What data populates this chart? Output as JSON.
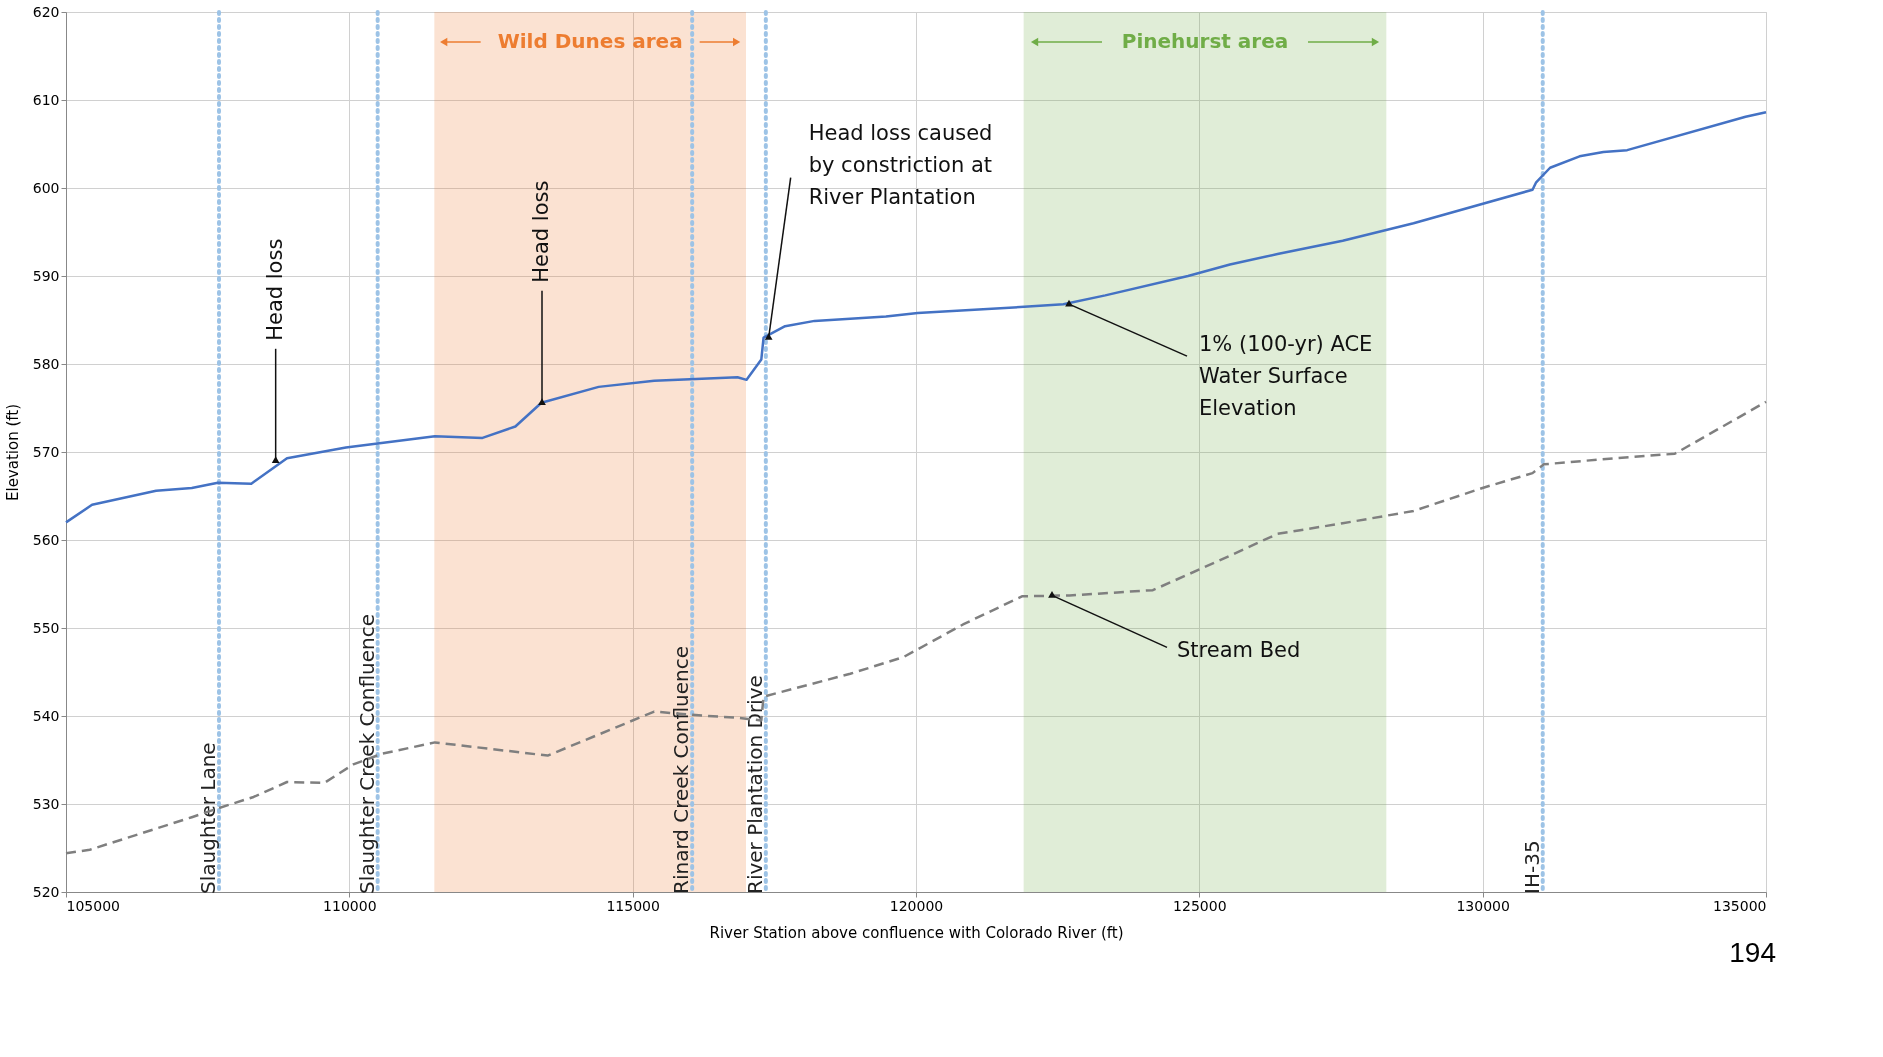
{
  "chart_data": {
    "type": "line",
    "xlabel": "River Station above confluence with Colorado River (ft)",
    "ylabel": "Elevation (ft)",
    "xlim": [
      105000,
      135000
    ],
    "xticks": [
      105000,
      110000,
      115000,
      120000,
      125000,
      130000,
      135000
    ],
    "ylim": [
      520,
      620
    ],
    "yticks": [
      520,
      530,
      540,
      550,
      560,
      570,
      580,
      590,
      600,
      610,
      620
    ],
    "grid": true,
    "series": [
      {
        "color": "#4472c4",
        "line_style": "solid",
        "x": [
          105000,
          105460,
          106590,
          107220,
          107680,
          108270,
          108900,
          109940,
          111510,
          112350,
          112930,
          113390,
          114400,
          115380,
          116850,
          117010,
          117270,
          117310,
          117690,
          118210,
          119470,
          120030,
          121910,
          122600,
          123340,
          124800,
          125540,
          126380,
          127530,
          128780,
          130880,
          130940,
          131190,
          131710,
          132130,
          132550,
          134640,
          135000
        ],
        "values": [
          562.0,
          564.0,
          565.6,
          565.9,
          566.5,
          566.4,
          569.3,
          570.5,
          571.8,
          571.6,
          572.9,
          575.6,
          577.4,
          578.1,
          578.5,
          578.2,
          580.5,
          583.0,
          584.3,
          584.9,
          585.4,
          585.8,
          586.5,
          586.8,
          587.8,
          590.0,
          591.3,
          592.5,
          594.0,
          596.0,
          599.8,
          600.6,
          602.3,
          603.6,
          604.1,
          604.3,
          608.1,
          608.6
        ]
      },
      {
        "color": "#7f7f7f",
        "line_style": "dashed",
        "x": [
          105000,
          105420,
          107220,
          107680,
          108310,
          108900,
          109560,
          110070,
          110570,
          111510,
          113500,
          115380,
          116110,
          116850,
          117270,
          117310,
          118840,
          119780,
          120830,
          121870,
          122710,
          124180,
          125330,
          126380,
          127530,
          128780,
          130040,
          130880,
          131080,
          132340,
          133390,
          135000
        ],
        "values": [
          524.4,
          524.8,
          528.5,
          529.5,
          530.8,
          532.5,
          532.4,
          534.5,
          535.7,
          537.0,
          535.5,
          540.5,
          540.1,
          539.8,
          539.5,
          542.2,
          544.8,
          546.7,
          550.4,
          553.6,
          553.7,
          554.3,
          557.6,
          560.7,
          561.9,
          563.3,
          566.0,
          567.6,
          568.6,
          569.3,
          569.8,
          575.7
        ]
      }
    ],
    "bands": [
      {
        "axis": "x",
        "from": 111500,
        "to": 117000,
        "label": "Wild Dunes area",
        "color": "#ed7d31"
      },
      {
        "axis": "x",
        "from": 121900,
        "to": 128300,
        "label": "Pinehurst area",
        "color": "#70ad47"
      }
    ],
    "ref_lines": [
      {
        "axis": "x",
        "value": 107700,
        "label": "Slaughter Lane",
        "color": "#9dc3e6",
        "line_style": "dotted"
      },
      {
        "axis": "x",
        "value": 110500,
        "label": "Slaughter Creek Confluence",
        "color": "#9dc3e6",
        "line_style": "dotted"
      },
      {
        "axis": "x",
        "value": 116050,
        "label": "Rinard Creek Confluence",
        "color": "#9dc3e6",
        "line_style": "dotted"
      },
      {
        "axis": "x",
        "value": 117350,
        "label": "River Plantation Drive",
        "color": "#9dc3e6",
        "line_style": "dotted"
      },
      {
        "axis": "x",
        "value": 131060,
        "label": "IH-35",
        "color": "#9dc3e6",
        "line_style": "dotted"
      }
    ],
    "annotations": [
      {
        "text": "Head loss",
        "x": 108700,
        "y": 569.0
      },
      {
        "text": "Head loss",
        "x": 113400,
        "y": 575.6
      },
      {
        "text": "Head loss caused\nby constriction at\nRiver Plantation",
        "x": 117400,
        "y": 583.0
      },
      {
        "text": "1% (100-yr) ACE\nWater Surface\nElevation",
        "x": 122700,
        "y": 586.8
      },
      {
        "text": "Stream Bed",
        "x": 122400,
        "y": 553.7
      },
      "194"
    ]
  }
}
